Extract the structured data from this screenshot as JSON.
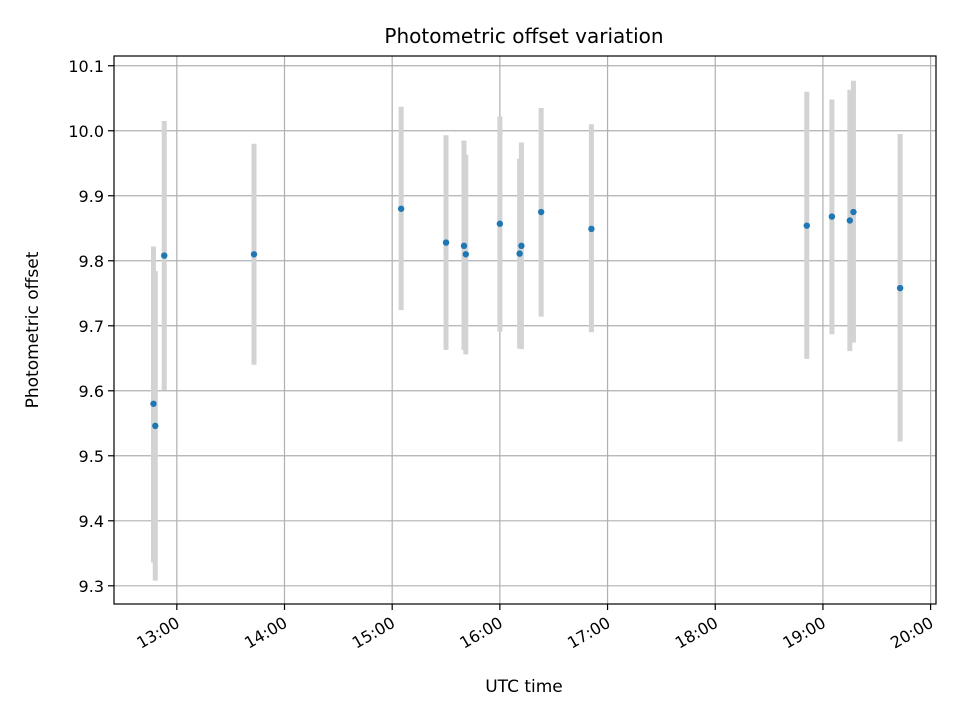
{
  "chart_data": {
    "type": "scatter",
    "title": "Photometric offset variation",
    "xlabel": "UTC time",
    "ylabel": "Photometric offset",
    "x_tick_labels": [
      "13:00",
      "14:00",
      "15:00",
      "16:00",
      "17:00",
      "18:00",
      "19:00",
      "20:00"
    ],
    "y_tick_labels": [
      "9.3",
      "9.4",
      "9.5",
      "9.6",
      "9.7",
      "9.8",
      "9.9",
      "10.0",
      "10.1"
    ],
    "xlim": [
      "12:25",
      "20:03"
    ],
    "ylim": [
      9.272,
      10.115
    ],
    "grid": true,
    "marker_color": "#1f77b4",
    "errorbar_color": "#d3d3d3",
    "points": [
      {
        "time": "12:47",
        "value": 9.58,
        "err_low": 9.336,
        "err_high": 9.822
      },
      {
        "time": "12:48",
        "value": 9.546,
        "err_low": 9.308,
        "err_high": 9.784
      },
      {
        "time": "12:53",
        "value": 9.808,
        "err_low": 9.601,
        "err_high": 10.015
      },
      {
        "time": "13:43",
        "value": 9.81,
        "err_low": 9.64,
        "err_high": 9.98
      },
      {
        "time": "15:05",
        "value": 9.88,
        "err_low": 9.724,
        "err_high": 10.037
      },
      {
        "time": "15:30",
        "value": 9.828,
        "err_low": 9.663,
        "err_high": 9.993
      },
      {
        "time": "15:40",
        "value": 9.823,
        "err_low": 9.663,
        "err_high": 9.985
      },
      {
        "time": "15:41",
        "value": 9.81,
        "err_low": 9.656,
        "err_high": 9.963
      },
      {
        "time": "16:00",
        "value": 9.857,
        "err_low": 9.691,
        "err_high": 10.022
      },
      {
        "time": "16:11",
        "value": 9.811,
        "err_low": 9.665,
        "err_high": 9.957
      },
      {
        "time": "16:12",
        "value": 9.823,
        "err_low": 9.664,
        "err_high": 9.982
      },
      {
        "time": "16:23",
        "value": 9.875,
        "err_low": 9.714,
        "err_high": 10.035
      },
      {
        "time": "16:51",
        "value": 9.849,
        "err_low": 9.69,
        "err_high": 10.01
      },
      {
        "time": "18:51",
        "value": 9.854,
        "err_low": 9.649,
        "err_high": 10.06
      },
      {
        "time": "19:05",
        "value": 9.868,
        "err_low": 9.687,
        "err_high": 10.048
      },
      {
        "time": "19:15",
        "value": 9.862,
        "err_low": 9.661,
        "err_high": 10.063
      },
      {
        "time": "19:17",
        "value": 9.875,
        "err_low": 9.674,
        "err_high": 10.077
      },
      {
        "time": "19:43",
        "value": 9.758,
        "err_low": 9.522,
        "err_high": 9.995
      }
    ]
  }
}
